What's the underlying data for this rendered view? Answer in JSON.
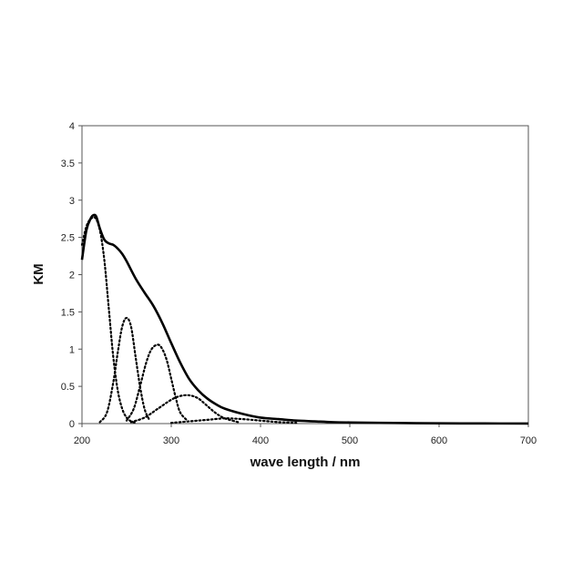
{
  "chart_data": {
    "type": "line",
    "title": "",
    "xlabel": "wave length / nm",
    "ylabel": "KM",
    "xlim": [
      200,
      700
    ],
    "ylim": [
      0,
      4
    ],
    "x_ticks": [
      "200",
      "300",
      "400",
      "500",
      "600",
      "700"
    ],
    "y_ticks": [
      "0",
      "0.5",
      "1",
      "1.5",
      "2",
      "2.5",
      "3",
      "3.5",
      "4"
    ],
    "grid": false,
    "legend": "none",
    "series": [
      {
        "style": "solid",
        "x": [
          200,
          205,
          210,
          213,
          216,
          220,
          225,
          230,
          235,
          240,
          245,
          250,
          260,
          270,
          280,
          290,
          300,
          310,
          320,
          330,
          340,
          350,
          360,
          380,
          400,
          420,
          440,
          460,
          480,
          500,
          550,
          600,
          650,
          700
        ],
        "y": [
          2.2,
          2.6,
          2.76,
          2.8,
          2.78,
          2.62,
          2.47,
          2.42,
          2.4,
          2.35,
          2.28,
          2.18,
          1.95,
          1.76,
          1.58,
          1.35,
          1.08,
          0.82,
          0.6,
          0.45,
          0.34,
          0.26,
          0.2,
          0.13,
          0.08,
          0.06,
          0.04,
          0.03,
          0.02,
          0.015,
          0.008,
          0.004,
          0.002,
          0.001
        ]
      },
      {
        "style": "dotted",
        "x": [
          200,
          205,
          210,
          215,
          220,
          225,
          230,
          235,
          240,
          245,
          250,
          255,
          260
        ],
        "y": [
          2.4,
          2.65,
          2.75,
          2.76,
          2.6,
          2.2,
          1.55,
          0.9,
          0.45,
          0.2,
          0.08,
          0.03,
          0.01
        ]
      },
      {
        "style": "dotted",
        "x": [
          220,
          228,
          235,
          240,
          245,
          250,
          255,
          260,
          265,
          270,
          275
        ],
        "y": [
          0.02,
          0.15,
          0.55,
          0.95,
          1.3,
          1.42,
          1.3,
          0.9,
          0.5,
          0.2,
          0.06
        ]
      },
      {
        "style": "dotted",
        "x": [
          250,
          258,
          265,
          272,
          278,
          285,
          290,
          295,
          300,
          305,
          310,
          318
        ],
        "y": [
          0.04,
          0.2,
          0.5,
          0.82,
          1.0,
          1.06,
          1.0,
          0.85,
          0.6,
          0.35,
          0.15,
          0.04
        ]
      },
      {
        "style": "dotted",
        "x": [
          255,
          270,
          285,
          300,
          310,
          320,
          330,
          340,
          350,
          360,
          375
        ],
        "y": [
          0.02,
          0.08,
          0.2,
          0.32,
          0.37,
          0.38,
          0.34,
          0.24,
          0.14,
          0.07,
          0.02
        ]
      },
      {
        "style": "dotted",
        "x": [
          300,
          320,
          340,
          360,
          380,
          400,
          420,
          440
        ],
        "y": [
          0.01,
          0.03,
          0.05,
          0.07,
          0.06,
          0.04,
          0.02,
          0.01
        ]
      }
    ]
  }
}
